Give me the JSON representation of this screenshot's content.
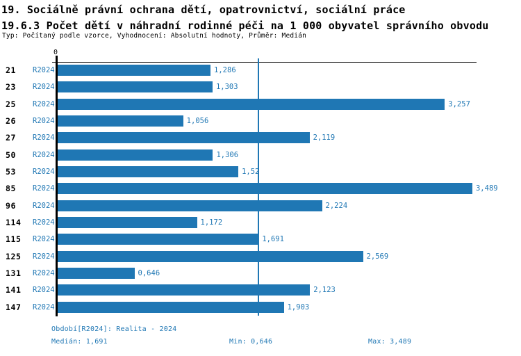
{
  "header": {
    "title_line1": "19. Sociálně právní ochrana dětí, opatrovnictví, sociální práce",
    "title_line2": "19.6.3 Počet dětí v náhradní rodinné péči na 1 000 obyvatel správního obvodu",
    "subtitle": "Typ: Počítaný podle vzorce, Vyhodnocení: Absolutní hodnoty, Průměr: Medián"
  },
  "chart_data": {
    "type": "bar",
    "orientation": "horizontal",
    "title": "19.6.3 Počet dětí v náhradní rodinné péči na 1 000 obyvatel správního obvodu",
    "categories": [
      "21",
      "23",
      "25",
      "26",
      "27",
      "50",
      "53",
      "85",
      "96",
      "114",
      "115",
      "125",
      "131",
      "141",
      "147"
    ],
    "series": [
      {
        "name": "R2024",
        "values": [
          1.286,
          1.303,
          3.257,
          1.056,
          2.119,
          1.306,
          1.52,
          3.489,
          2.224,
          1.172,
          1.691,
          2.569,
          0.646,
          2.123,
          1.903
        ],
        "value_labels": [
          "1,286",
          "1,303",
          "3,257",
          "1,056",
          "2,119",
          "1,306",
          "1,52",
          "3,489",
          "2,224",
          "1,172",
          "1,691",
          "2,569",
          "0,646",
          "2,123",
          "1,903"
        ]
      }
    ],
    "axis_origin_label": "0",
    "xlim": [
      0,
      3.53
    ],
    "median_line_value": 1.691,
    "bar_color": "#1f77b4",
    "median_line_color": "#1f77b4",
    "grid": false,
    "legend_position": "none"
  },
  "footer": {
    "period": "Období[R2024]: Realita - 2024",
    "median": "Medián: 1,691",
    "min": "Min: 0,646",
    "max": "Max: 3,489"
  }
}
